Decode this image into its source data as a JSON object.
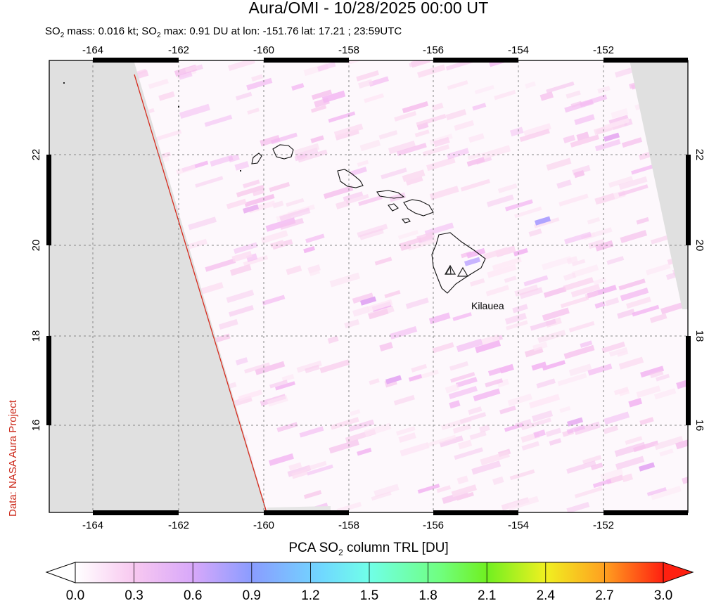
{
  "title": "Aura/OMI - 10/28/2025 00:00 UT",
  "subtitle": {
    "so2": "SO",
    "sub2": "2",
    "mass_text": " mass: 0.016 kt; ",
    "max_text": " max: 0.91 DU at lon: -151.76 lat: 17.21 ; 23:59UTC"
  },
  "credit": "Data: NASA Aura Project",
  "map": {
    "lon_ticks": [
      "-164",
      "-162",
      "-160",
      "-158",
      "-156",
      "-154",
      "-152"
    ],
    "lat_ticks": [
      "22",
      "20",
      "18",
      "16"
    ],
    "volcano_label": "Kilauea",
    "colors": {
      "no_data": "#e0e0e0",
      "orbit_edge": "#d62b1e",
      "low_so2": "#fbdcf1",
      "mid_so2": "#e9a9f5",
      "peak_so2": "#a8a0ff"
    }
  },
  "colorbar": {
    "title_prefix": "PCA SO",
    "title_sub": "2",
    "title_suffix": " column TRL [DU]",
    "ticks": [
      "0.0",
      "0.3",
      "0.6",
      "0.9",
      "1.2",
      "1.5",
      "1.8",
      "2.1",
      "2.4",
      "2.7",
      "3.0"
    ],
    "stops": [
      "#ffffff",
      "#f8c8f0",
      "#c8a0ff",
      "#8a9cff",
      "#6fd0ff",
      "#70ffe8",
      "#70ff80",
      "#70f020",
      "#f0f020",
      "#ffa020",
      "#ff2010"
    ]
  }
}
